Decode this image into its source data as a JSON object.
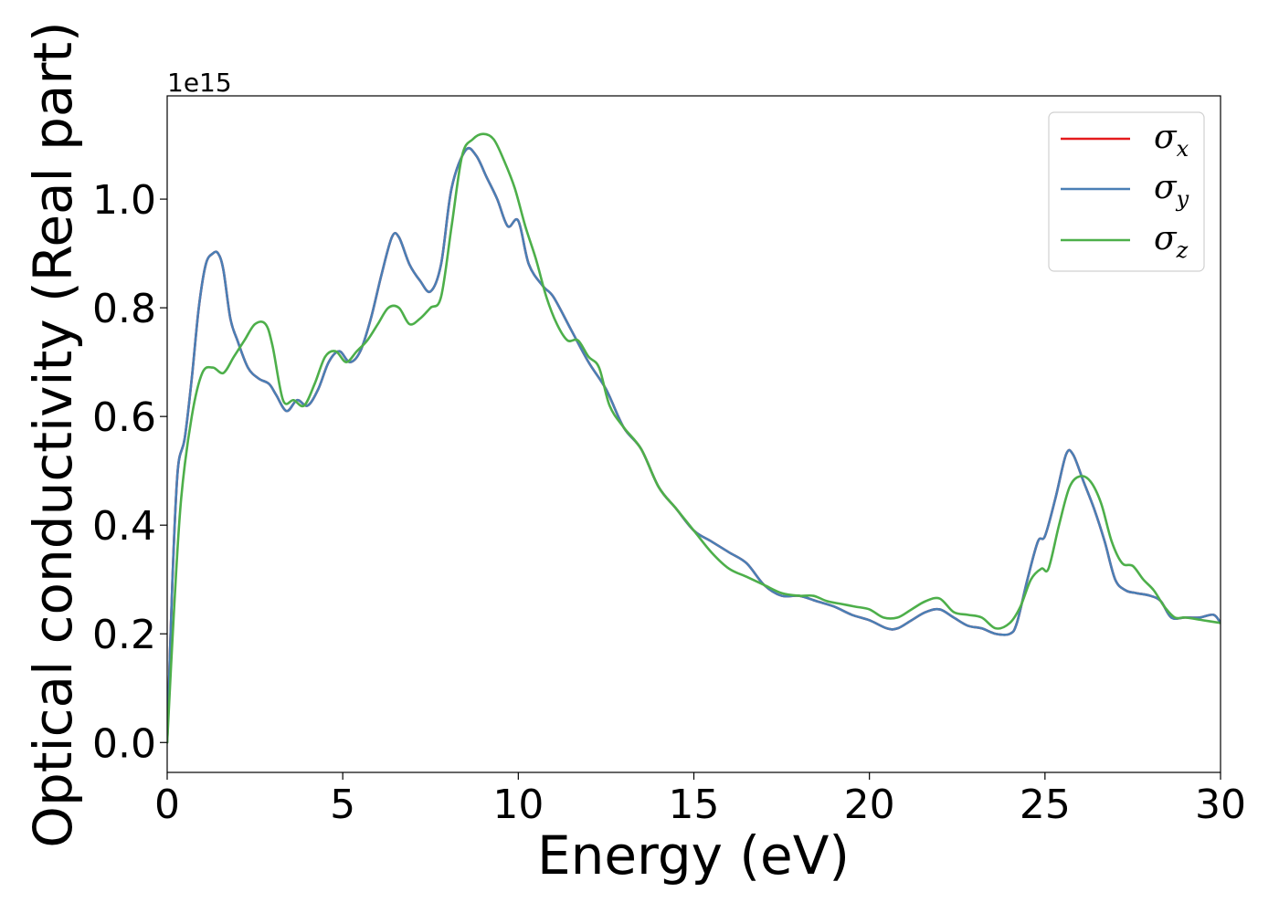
{
  "chart_data": {
    "type": "line",
    "title": "",
    "xlabel": "Energy (eV)",
    "ylabel": "Optical conductivity (Real part)",
    "y_offset_label": "1e15",
    "xlim": [
      0,
      30
    ],
    "ylim": [
      -0.055,
      1.19
    ],
    "x_ticks": [
      0,
      5,
      10,
      15,
      20,
      25,
      30
    ],
    "x_tick_labels": [
      "0",
      "5",
      "10",
      "15",
      "20",
      "25",
      "30"
    ],
    "y_ticks": [
      0.0,
      0.2,
      0.4,
      0.6,
      0.8,
      1.0
    ],
    "y_tick_labels": [
      "0.0",
      "0.2",
      "0.4",
      "0.6",
      "0.8",
      "1.0"
    ],
    "grid": false,
    "legend_position": "top-right",
    "series": [
      {
        "name": "σx",
        "legend_symbol": "σ",
        "legend_subscript": "x",
        "color": "#e41a1c",
        "x": [
          0,
          0.15,
          0.3,
          0.5,
          0.7,
          0.9,
          1.1,
          1.3,
          1.45,
          1.6,
          1.8,
          2.0,
          2.3,
          2.6,
          2.9,
          3.1,
          3.4,
          3.7,
          4.0,
          4.3,
          4.6,
          4.9,
          5.2,
          5.5,
          5.8,
          6.1,
          6.4,
          6.6,
          6.9,
          7.2,
          7.5,
          7.8,
          8.1,
          8.5,
          8.8,
          9.1,
          9.4,
          9.7,
          10.0,
          10.3,
          10.7,
          11.0,
          11.5,
          12.0,
          12.5,
          13.0,
          13.5,
          14.0,
          14.5,
          15.0,
          15.5,
          16.0,
          16.5,
          17.0,
          17.5,
          18.0,
          18.5,
          19.0,
          19.5,
          20.0,
          20.5,
          20.8,
          21.2,
          21.6,
          22.0,
          22.4,
          22.8,
          23.2,
          23.6,
          24.0,
          24.2,
          24.5,
          24.8,
          25.0,
          25.3,
          25.6,
          25.8,
          26.1,
          26.4,
          26.7,
          27.0,
          27.3,
          27.6,
          28.0,
          28.3,
          28.6,
          29.0,
          29.4,
          29.8,
          30.0
        ],
        "y": [
          0.0,
          0.3,
          0.5,
          0.56,
          0.67,
          0.8,
          0.88,
          0.9,
          0.9,
          0.87,
          0.78,
          0.74,
          0.69,
          0.67,
          0.66,
          0.64,
          0.61,
          0.63,
          0.62,
          0.65,
          0.7,
          0.72,
          0.7,
          0.72,
          0.78,
          0.86,
          0.93,
          0.93,
          0.88,
          0.85,
          0.83,
          0.88,
          1.02,
          1.09,
          1.08,
          1.04,
          1.0,
          0.95,
          0.96,
          0.88,
          0.84,
          0.82,
          0.76,
          0.7,
          0.65,
          0.58,
          0.54,
          0.47,
          0.43,
          0.39,
          0.37,
          0.35,
          0.33,
          0.29,
          0.27,
          0.27,
          0.26,
          0.25,
          0.235,
          0.225,
          0.21,
          0.21,
          0.225,
          0.24,
          0.245,
          0.23,
          0.215,
          0.21,
          0.2,
          0.2,
          0.22,
          0.3,
          0.37,
          0.38,
          0.45,
          0.53,
          0.53,
          0.48,
          0.43,
          0.37,
          0.3,
          0.28,
          0.275,
          0.27,
          0.26,
          0.23,
          0.23,
          0.23,
          0.235,
          0.22
        ]
      },
      {
        "name": "σy",
        "legend_symbol": "σ",
        "legend_subscript": "y",
        "color": "#4a7fb5",
        "x": [
          0,
          0.15,
          0.3,
          0.5,
          0.7,
          0.9,
          1.1,
          1.3,
          1.45,
          1.6,
          1.8,
          2.0,
          2.3,
          2.6,
          2.9,
          3.1,
          3.4,
          3.7,
          4.0,
          4.3,
          4.6,
          4.9,
          5.2,
          5.5,
          5.8,
          6.1,
          6.4,
          6.6,
          6.9,
          7.2,
          7.5,
          7.8,
          8.1,
          8.5,
          8.8,
          9.1,
          9.4,
          9.7,
          10.0,
          10.3,
          10.7,
          11.0,
          11.5,
          12.0,
          12.5,
          13.0,
          13.5,
          14.0,
          14.5,
          15.0,
          15.5,
          16.0,
          16.5,
          17.0,
          17.5,
          18.0,
          18.5,
          19.0,
          19.5,
          20.0,
          20.5,
          20.8,
          21.2,
          21.6,
          22.0,
          22.4,
          22.8,
          23.2,
          23.6,
          24.0,
          24.2,
          24.5,
          24.8,
          25.0,
          25.3,
          25.6,
          25.8,
          26.1,
          26.4,
          26.7,
          27.0,
          27.3,
          27.6,
          28.0,
          28.3,
          28.6,
          29.0,
          29.4,
          29.8,
          30.0
        ],
        "y": [
          0.0,
          0.3,
          0.5,
          0.56,
          0.67,
          0.8,
          0.88,
          0.9,
          0.9,
          0.87,
          0.78,
          0.74,
          0.69,
          0.67,
          0.66,
          0.64,
          0.61,
          0.63,
          0.62,
          0.65,
          0.7,
          0.72,
          0.7,
          0.72,
          0.78,
          0.86,
          0.93,
          0.93,
          0.88,
          0.85,
          0.83,
          0.88,
          1.02,
          1.09,
          1.08,
          1.04,
          1.0,
          0.95,
          0.96,
          0.88,
          0.84,
          0.82,
          0.76,
          0.7,
          0.65,
          0.58,
          0.54,
          0.47,
          0.43,
          0.39,
          0.37,
          0.35,
          0.33,
          0.29,
          0.27,
          0.27,
          0.26,
          0.25,
          0.235,
          0.225,
          0.21,
          0.21,
          0.225,
          0.24,
          0.245,
          0.23,
          0.215,
          0.21,
          0.2,
          0.2,
          0.22,
          0.3,
          0.37,
          0.38,
          0.45,
          0.53,
          0.53,
          0.48,
          0.43,
          0.37,
          0.3,
          0.28,
          0.275,
          0.27,
          0.26,
          0.23,
          0.23,
          0.23,
          0.235,
          0.22
        ]
      },
      {
        "name": "σz",
        "legend_symbol": "σ",
        "legend_subscript": "z",
        "color": "#4daf4a",
        "x": [
          0,
          0.2,
          0.4,
          0.7,
          1.0,
          1.3,
          1.6,
          1.9,
          2.2,
          2.5,
          2.8,
          3.0,
          3.3,
          3.6,
          3.9,
          4.2,
          4.5,
          4.8,
          5.1,
          5.4,
          5.7,
          6.0,
          6.3,
          6.6,
          6.9,
          7.2,
          7.5,
          7.8,
          8.1,
          8.4,
          8.7,
          9.0,
          9.3,
          9.6,
          9.9,
          10.2,
          10.5,
          10.8,
          11.1,
          11.4,
          11.7,
          12.0,
          12.3,
          12.6,
          13.0,
          13.5,
          14.0,
          14.5,
          15.0,
          15.5,
          16.0,
          16.5,
          17.0,
          17.5,
          18.0,
          18.4,
          18.8,
          19.2,
          19.6,
          20.0,
          20.4,
          20.8,
          21.2,
          21.6,
          22.0,
          22.4,
          22.8,
          23.2,
          23.6,
          24.0,
          24.3,
          24.6,
          24.9,
          25.1,
          25.4,
          25.7,
          26.0,
          26.3,
          26.6,
          26.9,
          27.2,
          27.5,
          27.8,
          28.1,
          28.4,
          28.7,
          29.0,
          29.5,
          30.0
        ],
        "y": [
          0.0,
          0.25,
          0.45,
          0.6,
          0.68,
          0.69,
          0.68,
          0.71,
          0.74,
          0.77,
          0.77,
          0.73,
          0.63,
          0.63,
          0.62,
          0.66,
          0.71,
          0.72,
          0.7,
          0.72,
          0.74,
          0.77,
          0.8,
          0.8,
          0.77,
          0.78,
          0.8,
          0.82,
          0.95,
          1.08,
          1.11,
          1.12,
          1.11,
          1.07,
          1.02,
          0.95,
          0.89,
          0.82,
          0.77,
          0.74,
          0.74,
          0.71,
          0.69,
          0.62,
          0.58,
          0.54,
          0.47,
          0.43,
          0.39,
          0.35,
          0.32,
          0.305,
          0.29,
          0.275,
          0.27,
          0.27,
          0.26,
          0.255,
          0.25,
          0.245,
          0.23,
          0.23,
          0.245,
          0.26,
          0.265,
          0.24,
          0.235,
          0.23,
          0.21,
          0.22,
          0.25,
          0.3,
          0.32,
          0.32,
          0.4,
          0.47,
          0.49,
          0.48,
          0.44,
          0.37,
          0.33,
          0.325,
          0.3,
          0.28,
          0.25,
          0.23,
          0.23,
          0.225,
          0.22
        ]
      }
    ]
  }
}
